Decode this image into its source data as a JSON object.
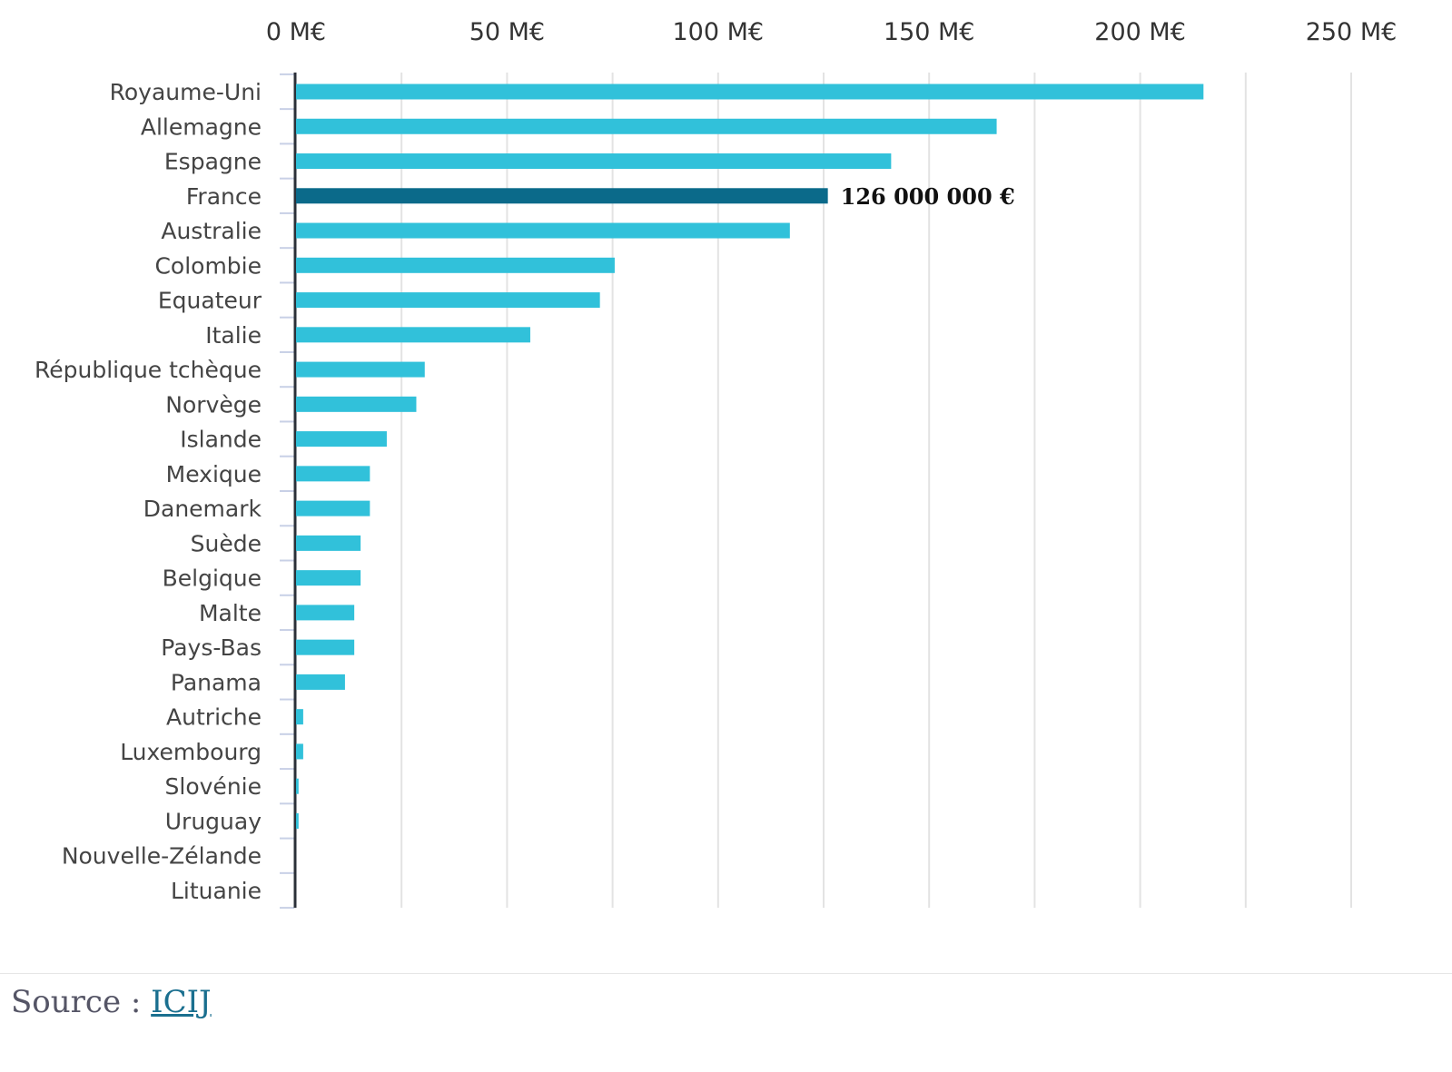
{
  "chart_data": {
    "type": "bar",
    "orientation": "horizontal",
    "unit": "M€",
    "categories": [
      "Royaume-Uni",
      "Allemagne",
      "Espagne",
      "France",
      "Australie",
      "Colombie",
      "Equateur",
      "Italie",
      "République tchèque",
      "Norvège",
      "Islande",
      "Mexique",
      "Danemark",
      "Suède",
      "Belgique",
      "Malte",
      "Pays-Bas",
      "Panama",
      "Autriche",
      "Luxembourg",
      "Slovénie",
      "Uruguay",
      "Nouvelle-Zélande",
      "Lituanie"
    ],
    "values": [
      215,
      166,
      141,
      126,
      117,
      75.5,
      72,
      55.5,
      30.5,
      28.5,
      21.5,
      17.5,
      17.5,
      15.3,
      15.3,
      13.8,
      13.8,
      11.6,
      1.7,
      1.7,
      0.6,
      0.6,
      0,
      0
    ],
    "highlight_index": 3,
    "highlight_label": "126 000 000 €",
    "xlim": [
      0,
      250
    ],
    "ticks": [
      0,
      50,
      100,
      150,
      200,
      250
    ],
    "tick_labels": [
      "0 M€",
      "50 M€",
      "100 M€",
      "150 M€",
      "200 M€",
      "250 M€"
    ],
    "grid_step": 25,
    "grid": true,
    "colors": {
      "bar": "#31c1da",
      "highlight": "#0b6a8a",
      "grid": "#e3e3e3",
      "axis": "#2b3038",
      "tick": "#c8d0e6"
    }
  },
  "source": {
    "label": "Source :",
    "link": "ICIJ"
  }
}
